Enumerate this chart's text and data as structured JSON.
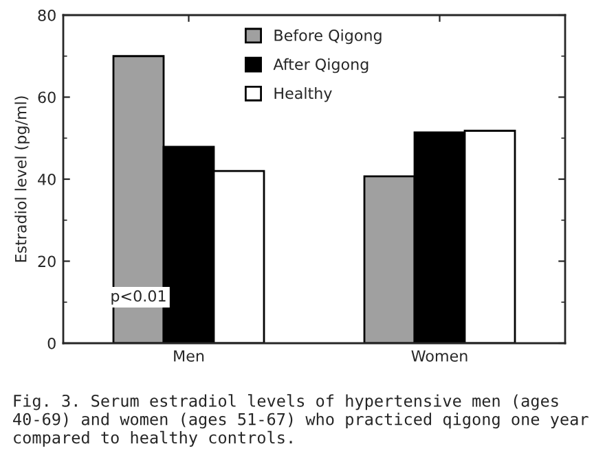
{
  "chart_data": {
    "type": "bar",
    "ylabel": "Estradiol level (pg/ml)",
    "categories": [
      "Men",
      "Women"
    ],
    "series": [
      {
        "name": "Before Qigong",
        "color": "#a0a0a0",
        "values": [
          70,
          40.7
        ]
      },
      {
        "name": "After Qigong",
        "color": "#000000",
        "values": [
          47.9,
          51.4
        ]
      },
      {
        "name": "Healthy",
        "color": "#ffffff",
        "values": [
          42,
          51.8
        ]
      }
    ],
    "ylim": [
      0,
      80
    ],
    "yticks": [
      0,
      20,
      40,
      60,
      80
    ],
    "grid": false,
    "legend": "top",
    "annotations": [
      "p<0.01",
      "Fig. 3. Serum estradiol levels of hypertensive men (ages 40-69) and women (ages 51-67) who practiced qigong one year compared to healthy controls."
    ]
  }
}
